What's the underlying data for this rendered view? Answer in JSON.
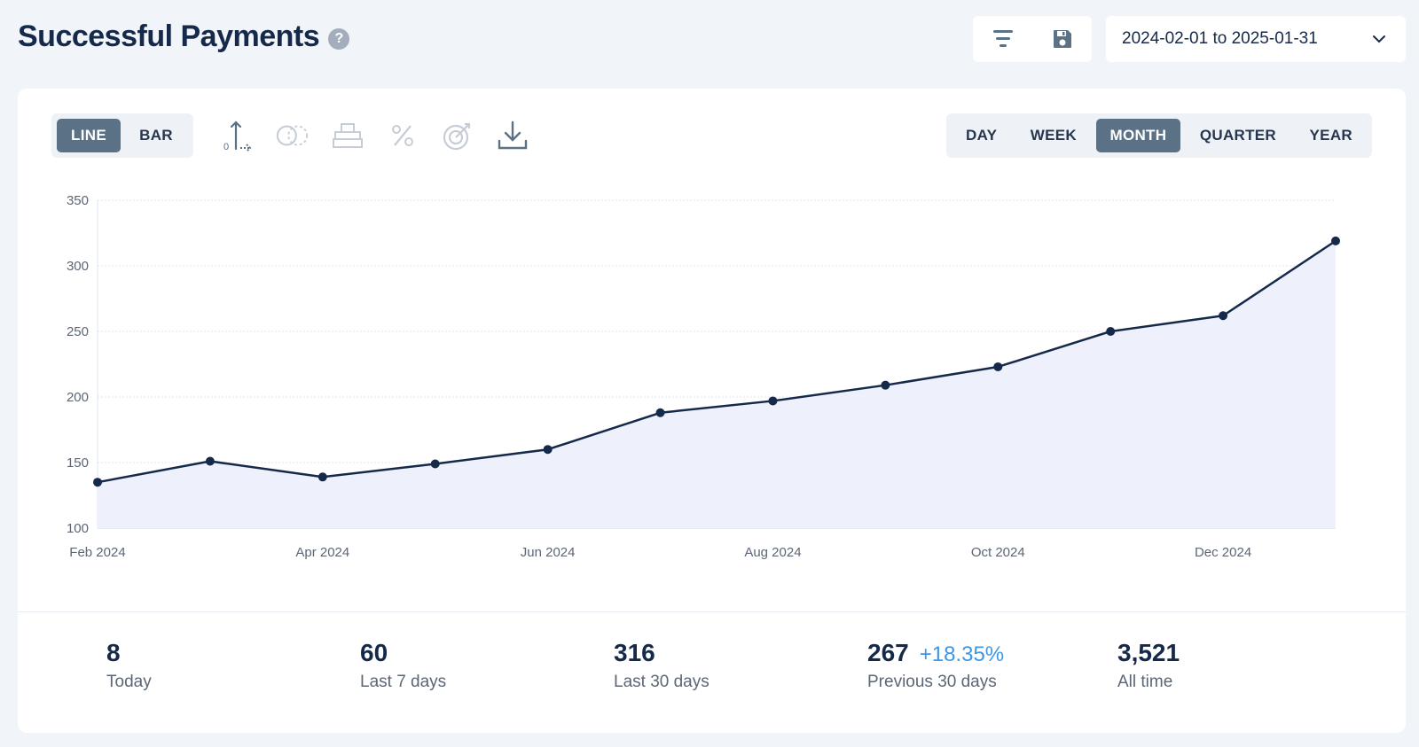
{
  "header": {
    "title": "Successful Payments",
    "help_icon": "question-circle-icon",
    "filter_icon": "filter-lines-icon",
    "save_icon": "floppy-disk-icon",
    "date_range": "2024-02-01 to 2025-01-31",
    "dropdown_icon": "chevron-down-icon"
  },
  "toolbar": {
    "chart_types": [
      {
        "label": "LINE",
        "active": true
      },
      {
        "label": "BAR",
        "active": false
      }
    ],
    "tool_icons": [
      "axis-icon",
      "compare-circles-icon",
      "stack-icon",
      "percent-icon",
      "target-icon",
      "download-icon"
    ],
    "intervals": [
      {
        "label": "DAY",
        "active": false
      },
      {
        "label": "WEEK",
        "active": false
      },
      {
        "label": "MONTH",
        "active": true
      },
      {
        "label": "QUARTER",
        "active": false
      },
      {
        "label": "YEAR",
        "active": false
      }
    ]
  },
  "colors": {
    "line": "#15294a",
    "area": "#eef1fb",
    "active_segment": "#5b7186",
    "positive_change": "#3d97e6"
  },
  "chart_data": {
    "type": "line",
    "x": [
      "2024-02",
      "2024-03",
      "2024-04",
      "2024-05",
      "2024-06",
      "2024-07",
      "2024-08",
      "2024-09",
      "2024-10",
      "2024-11",
      "2024-12",
      "2025-01"
    ],
    "values": [
      135,
      151,
      139,
      149,
      160,
      188,
      197,
      209,
      223,
      250,
      262,
      319
    ],
    "x_tick_labels": [
      "Feb 2024",
      "Apr 2024",
      "Jun 2024",
      "Aug 2024",
      "Oct 2024",
      "Dec 2024"
    ],
    "x_tick_positions": [
      "2024-02",
      "2024-04",
      "2024-06",
      "2024-08",
      "2024-10",
      "2024-12"
    ],
    "y_ticks": [
      "100",
      "150",
      "200",
      "250",
      "300",
      "350"
    ],
    "ylim": [
      100,
      350
    ],
    "grid": true,
    "area_fill": true
  },
  "stats": [
    {
      "value": "8",
      "label": "Today",
      "change": ""
    },
    {
      "value": "60",
      "label": "Last 7 days",
      "change": ""
    },
    {
      "value": "316",
      "label": "Last 30 days",
      "change": ""
    },
    {
      "value": "267",
      "label": "Previous 30 days",
      "change": "+18.35%"
    },
    {
      "value": "3,521",
      "label": "All time",
      "change": ""
    }
  ]
}
